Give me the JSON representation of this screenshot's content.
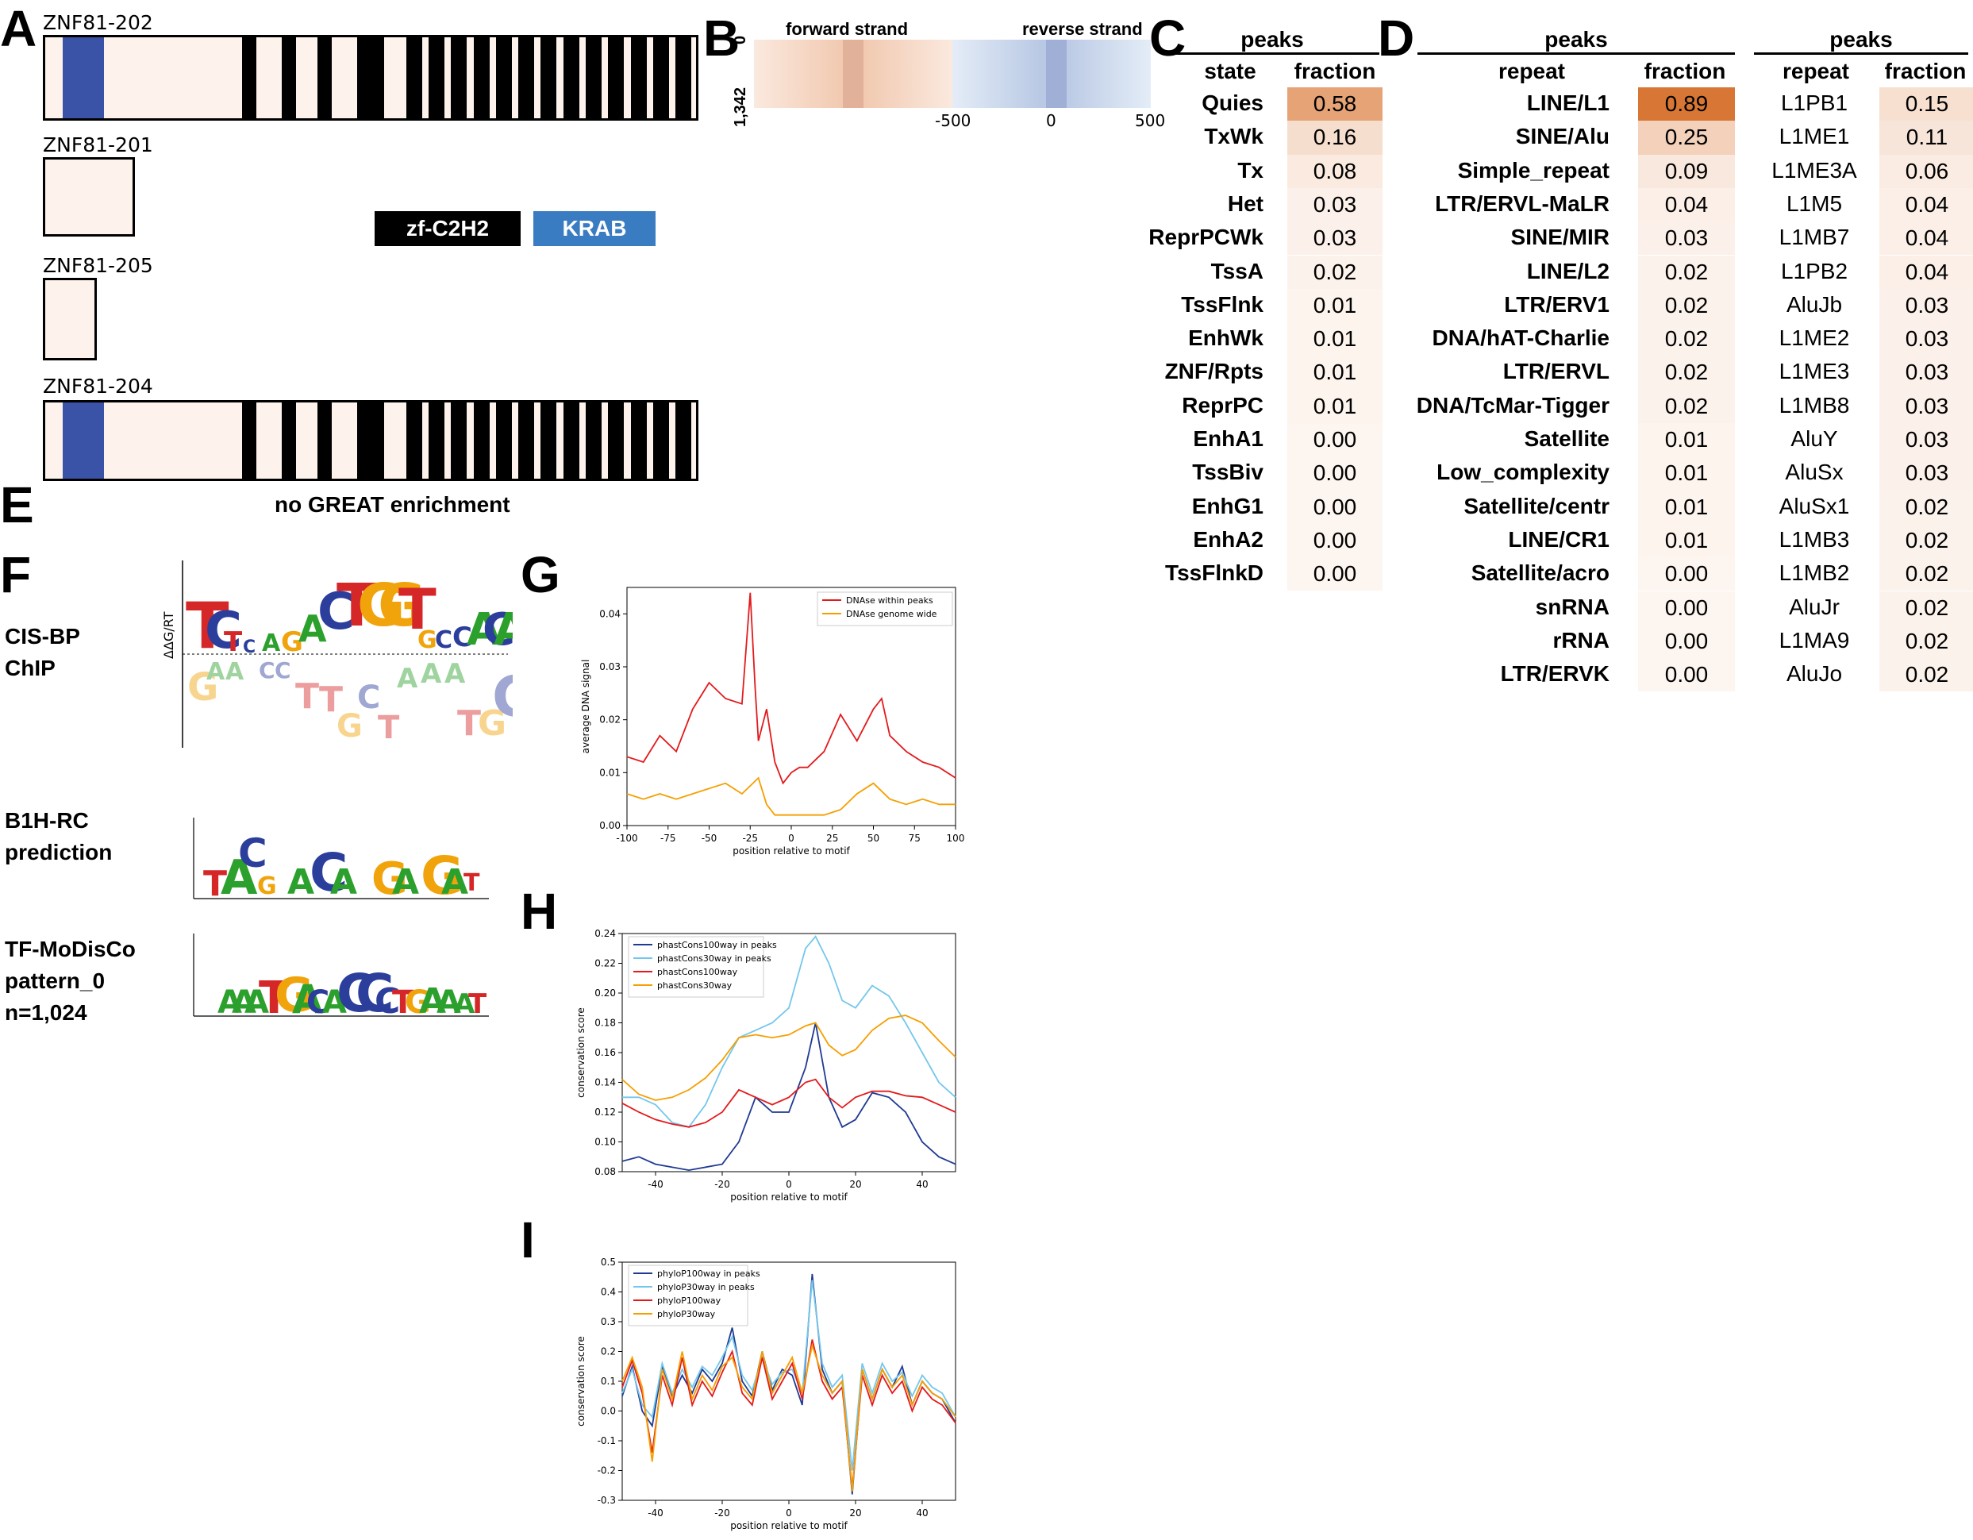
{
  "panel_labels": {
    "A": "A",
    "B": "B",
    "C": "C",
    "D": "D",
    "E": "E",
    "F": "F",
    "G": "G",
    "H": "H",
    "I": "I"
  },
  "panelA": {
    "tracks": [
      {
        "name": "ZNF81-202",
        "zf_count": 17,
        "krab": true
      },
      {
        "name": "ZNF81-201",
        "zf_count": 0,
        "krab": false
      },
      {
        "name": "ZNF81-205",
        "zf_count": 0,
        "krab": false
      },
      {
        "name": "ZNF81-204",
        "zf_count": 17,
        "krab": true
      }
    ],
    "legend": {
      "zf": "zf-C2H2",
      "krab": "KRAB",
      "zf_color": "#000000",
      "krab_color": "#3b53a6"
    }
  },
  "panelB": {
    "forward": "forward strand",
    "reverse": "reverse strand",
    "y_top": "0",
    "y_bottom": "1,342",
    "x_ticks": [
      "-500",
      "0",
      "500"
    ]
  },
  "panelC": {
    "group": "peaks",
    "col_state": "state",
    "col_fraction": "fraction",
    "rows": [
      {
        "state": "Quies",
        "fraction": "0.58",
        "v": 0.58
      },
      {
        "state": "TxWk",
        "fraction": "0.16",
        "v": 0.16
      },
      {
        "state": "Tx",
        "fraction": "0.08",
        "v": 0.08
      },
      {
        "state": "Het",
        "fraction": "0.03",
        "v": 0.03
      },
      {
        "state": "ReprPCWk",
        "fraction": "0.03",
        "v": 0.03
      },
      {
        "state": "TssA",
        "fraction": "0.02",
        "v": 0.02
      },
      {
        "state": "TssFlnk",
        "fraction": "0.01",
        "v": 0.01
      },
      {
        "state": "EnhWk",
        "fraction": "0.01",
        "v": 0.01
      },
      {
        "state": "ZNF/Rpts",
        "fraction": "0.01",
        "v": 0.01
      },
      {
        "state": "ReprPC",
        "fraction": "0.01",
        "v": 0.01
      },
      {
        "state": "EnhA1",
        "fraction": "0.00",
        "v": 0.0
      },
      {
        "state": "TssBiv",
        "fraction": "0.00",
        "v": 0.0
      },
      {
        "state": "EnhG1",
        "fraction": "0.00",
        "v": 0.0
      },
      {
        "state": "EnhA2",
        "fraction": "0.00",
        "v": 0.0
      },
      {
        "state": "TssFlnkD",
        "fraction": "0.00",
        "v": 0.0
      }
    ]
  },
  "panelD": {
    "group1": "peaks",
    "group2": "peaks",
    "col_repeat": "repeat",
    "col_fraction": "fraction",
    "families": [
      {
        "repeat": "LINE/L1",
        "fraction": "0.89",
        "v": 0.89
      },
      {
        "repeat": "SINE/Alu",
        "fraction": "0.25",
        "v": 0.25
      },
      {
        "repeat": "Simple_repeat",
        "fraction": "0.09",
        "v": 0.09
      },
      {
        "repeat": "LTR/ERVL-MaLR",
        "fraction": "0.04",
        "v": 0.04
      },
      {
        "repeat": "SINE/MIR",
        "fraction": "0.03",
        "v": 0.03
      },
      {
        "repeat": "LINE/L2",
        "fraction": "0.02",
        "v": 0.02
      },
      {
        "repeat": "LTR/ERV1",
        "fraction": "0.02",
        "v": 0.02
      },
      {
        "repeat": "DNA/hAT-Charlie",
        "fraction": "0.02",
        "v": 0.02
      },
      {
        "repeat": "LTR/ERVL",
        "fraction": "0.02",
        "v": 0.02
      },
      {
        "repeat": "DNA/TcMar-Tigger",
        "fraction": "0.02",
        "v": 0.02
      },
      {
        "repeat": "Satellite",
        "fraction": "0.01",
        "v": 0.01
      },
      {
        "repeat": "Low_complexity",
        "fraction": "0.01",
        "v": 0.01
      },
      {
        "repeat": "Satellite/centr",
        "fraction": "0.01",
        "v": 0.01
      },
      {
        "repeat": "LINE/CR1",
        "fraction": "0.01",
        "v": 0.01
      },
      {
        "repeat": "Satellite/acro",
        "fraction": "0.00",
        "v": 0.0
      },
      {
        "repeat": "snRNA",
        "fraction": "0.00",
        "v": 0.0
      },
      {
        "repeat": "rRNA",
        "fraction": "0.00",
        "v": 0.0
      },
      {
        "repeat": "LTR/ERVK",
        "fraction": "0.00",
        "v": 0.0
      }
    ],
    "subfamilies": [
      {
        "repeat": "L1PB1",
        "fraction": "0.15",
        "v": 0.15
      },
      {
        "repeat": "L1ME1",
        "fraction": "0.11",
        "v": 0.11
      },
      {
        "repeat": "L1ME3A",
        "fraction": "0.06",
        "v": 0.06
      },
      {
        "repeat": "L1M5",
        "fraction": "0.04",
        "v": 0.04
      },
      {
        "repeat": "L1MB7",
        "fraction": "0.04",
        "v": 0.04
      },
      {
        "repeat": "L1PB2",
        "fraction": "0.04",
        "v": 0.04
      },
      {
        "repeat": "AluJb",
        "fraction": "0.03",
        "v": 0.03
      },
      {
        "repeat": "L1ME2",
        "fraction": "0.03",
        "v": 0.03
      },
      {
        "repeat": "L1ME3",
        "fraction": "0.03",
        "v": 0.03
      },
      {
        "repeat": "L1MB8",
        "fraction": "0.03",
        "v": 0.03
      },
      {
        "repeat": "AluY",
        "fraction": "0.03",
        "v": 0.03
      },
      {
        "repeat": "AluSx",
        "fraction": "0.03",
        "v": 0.03
      },
      {
        "repeat": "AluSx1",
        "fraction": "0.02",
        "v": 0.02
      },
      {
        "repeat": "L1MB3",
        "fraction": "0.02",
        "v": 0.02
      },
      {
        "repeat": "L1MB2",
        "fraction": "0.02",
        "v": 0.02
      },
      {
        "repeat": "AluJr",
        "fraction": "0.02",
        "v": 0.02
      },
      {
        "repeat": "L1MA9",
        "fraction": "0.02",
        "v": 0.02
      },
      {
        "repeat": "AluJo",
        "fraction": "0.02",
        "v": 0.02
      }
    ]
  },
  "panelE": {
    "text": "no GREAT enrichment"
  },
  "panelF": {
    "cisbp_line1": "CIS-BP",
    "cisbp_line2": "ChIP",
    "b1h_line1": "B1H-RC",
    "b1h_line2": "prediction",
    "modisco_line1": "TF-MoDisCo",
    "modisco_line2": "pattern_0",
    "modisco_line3": "n=1,024",
    "ylabel": "ΔΔG/RT"
  },
  "chart_data": [
    {
      "type": "line",
      "xlabel": "position relative to motif",
      "ylabel": "average DNA signal",
      "xlim": [
        -100,
        100
      ],
      "ylim": [
        0,
        0.045
      ],
      "xticks": [
        "-100",
        "-75",
        "-50",
        "-25",
        "0",
        "25",
        "50",
        "75",
        "100"
      ],
      "yticks": [
        "0.00",
        "0.01",
        "0.02",
        "0.03",
        "0.04"
      ],
      "legend_position": "top-right",
      "series": [
        {
          "name": "DNAse within peaks",
          "color": "#e31a1c",
          "x": [
            -100,
            -90,
            -80,
            -70,
            -60,
            -50,
            -40,
            -30,
            -25,
            -22,
            -20,
            -15,
            -10,
            -5,
            0,
            5,
            10,
            20,
            30,
            40,
            50,
            55,
            60,
            70,
            80,
            90,
            100
          ],
          "y": [
            0.013,
            0.012,
            0.017,
            0.014,
            0.022,
            0.027,
            0.024,
            0.023,
            0.044,
            0.026,
            0.016,
            0.022,
            0.012,
            0.008,
            0.01,
            0.011,
            0.011,
            0.014,
            0.021,
            0.016,
            0.022,
            0.024,
            0.017,
            0.014,
            0.012,
            0.011,
            0.009
          ]
        },
        {
          "name": "DNAse genome wide",
          "color": "#f59f00",
          "x": [
            -100,
            -90,
            -80,
            -70,
            -60,
            -50,
            -40,
            -30,
            -20,
            -15,
            -10,
            -5,
            0,
            10,
            20,
            30,
            40,
            50,
            60,
            70,
            80,
            90,
            100
          ],
          "y": [
            0.006,
            0.005,
            0.006,
            0.005,
            0.006,
            0.007,
            0.008,
            0.006,
            0.009,
            0.004,
            0.002,
            0.002,
            0.002,
            0.002,
            0.002,
            0.003,
            0.006,
            0.008,
            0.005,
            0.004,
            0.005,
            0.004,
            0.004
          ]
        }
      ]
    },
    {
      "type": "line",
      "xlabel": "position relative to motif",
      "ylabel": "conservation score",
      "xlim": [
        -50,
        50
      ],
      "ylim": [
        0.08,
        0.24
      ],
      "xticks": [
        "-40",
        "-20",
        "0",
        "20",
        "40"
      ],
      "yticks": [
        "0.08",
        "0.10",
        "0.12",
        "0.14",
        "0.16",
        "0.18",
        "0.20",
        "0.22",
        "0.24"
      ],
      "legend_position": "top-left",
      "series": [
        {
          "name": "phastCons100way in peaks",
          "color": "#1f3a93",
          "x": [
            -50,
            -45,
            -40,
            -30,
            -20,
            -15,
            -10,
            -5,
            0,
            5,
            8,
            12,
            16,
            20,
            25,
            30,
            35,
            40,
            45,
            50
          ],
          "y": [
            0.087,
            0.09,
            0.085,
            0.081,
            0.085,
            0.1,
            0.13,
            0.12,
            0.12,
            0.15,
            0.18,
            0.13,
            0.11,
            0.115,
            0.133,
            0.13,
            0.12,
            0.1,
            0.09,
            0.085
          ]
        },
        {
          "name": "phastCons30way in peaks",
          "color": "#74c7ec",
          "x": [
            -50,
            -45,
            -40,
            -35,
            -30,
            -25,
            -20,
            -15,
            -10,
            -5,
            0,
            5,
            8,
            12,
            16,
            20,
            25,
            30,
            35,
            40,
            45,
            50
          ],
          "y": [
            0.13,
            0.13,
            0.125,
            0.113,
            0.11,
            0.125,
            0.15,
            0.17,
            0.175,
            0.18,
            0.19,
            0.23,
            0.238,
            0.22,
            0.195,
            0.19,
            0.205,
            0.198,
            0.18,
            0.16,
            0.14,
            0.13
          ]
        },
        {
          "name": "phastCons100way",
          "color": "#e31a1c",
          "x": [
            -50,
            -45,
            -40,
            -35,
            -30,
            -25,
            -20,
            -15,
            -10,
            -5,
            0,
            5,
            8,
            12,
            16,
            20,
            25,
            30,
            35,
            40,
            45,
            50
          ],
          "y": [
            0.126,
            0.12,
            0.115,
            0.112,
            0.11,
            0.113,
            0.12,
            0.135,
            0.13,
            0.125,
            0.13,
            0.14,
            0.142,
            0.13,
            0.123,
            0.13,
            0.134,
            0.134,
            0.131,
            0.13,
            0.125,
            0.12
          ]
        },
        {
          "name": "phastCons30way",
          "color": "#f59f00",
          "x": [
            -50,
            -45,
            -40,
            -35,
            -30,
            -25,
            -20,
            -15,
            -10,
            -5,
            0,
            5,
            8,
            12,
            16,
            20,
            25,
            30,
            35,
            40,
            45,
            50
          ],
          "y": [
            0.142,
            0.132,
            0.128,
            0.13,
            0.135,
            0.143,
            0.155,
            0.17,
            0.172,
            0.17,
            0.172,
            0.178,
            0.18,
            0.165,
            0.158,
            0.162,
            0.175,
            0.183,
            0.185,
            0.18,
            0.168,
            0.157
          ]
        }
      ]
    },
    {
      "type": "line",
      "xlabel": "position relative to motif",
      "ylabel": "conservation score",
      "xlim": [
        -50,
        50
      ],
      "ylim": [
        -0.3,
        0.5
      ],
      "xticks": [
        "-40",
        "-20",
        "0",
        "20",
        "40"
      ],
      "yticks": [
        "-0.3",
        "-0.2",
        "-0.1",
        "0.0",
        "0.1",
        "0.2",
        "0.3",
        "0.4",
        "0.5"
      ],
      "legend_position": "top-left",
      "series": [
        {
          "name": "phyloP100way in peaks",
          "color": "#1f3a93",
          "x": [
            -50,
            -47,
            -44,
            -41,
            -38,
            -35,
            -32,
            -29,
            -26,
            -23,
            -20,
            -17,
            -14,
            -11,
            -8,
            -5,
            -2,
            1,
            4,
            7,
            10,
            13,
            16,
            19,
            22,
            25,
            28,
            31,
            34,
            37,
            40,
            43,
            46,
            50
          ],
          "y": [
            0.05,
            0.15,
            0.0,
            -0.05,
            0.15,
            0.05,
            0.12,
            0.06,
            0.14,
            0.1,
            0.16,
            0.28,
            0.1,
            0.05,
            0.2,
            0.07,
            0.14,
            0.12,
            0.02,
            0.46,
            0.14,
            0.06,
            0.1,
            -0.28,
            0.14,
            0.04,
            0.14,
            0.08,
            0.15,
            0.02,
            0.1,
            0.06,
            0.04,
            -0.04
          ]
        },
        {
          "name": "phyloP30way in peaks",
          "color": "#74c7ec",
          "x": [
            -50,
            -47,
            -44,
            -41,
            -38,
            -35,
            -32,
            -29,
            -26,
            -23,
            -20,
            -17,
            -14,
            -11,
            -8,
            -5,
            -2,
            1,
            4,
            7,
            10,
            13,
            16,
            19,
            22,
            25,
            28,
            31,
            34,
            37,
            40,
            43,
            46,
            50
          ],
          "y": [
            0.06,
            0.14,
            0.02,
            -0.02,
            0.16,
            0.06,
            0.14,
            0.08,
            0.15,
            0.12,
            0.18,
            0.25,
            0.12,
            0.07,
            0.18,
            0.09,
            0.13,
            0.14,
            0.06,
            0.44,
            0.16,
            0.08,
            0.12,
            -0.2,
            0.16,
            0.06,
            0.16,
            0.1,
            0.13,
            0.05,
            0.12,
            0.08,
            0.06,
            -0.02
          ]
        },
        {
          "name": "phyloP100way",
          "color": "#e31a1c",
          "x": [
            -50,
            -47,
            -44,
            -41,
            -38,
            -35,
            -32,
            -29,
            -26,
            -23,
            -20,
            -17,
            -14,
            -11,
            -8,
            -5,
            -2,
            1,
            4,
            7,
            10,
            13,
            16,
            19,
            22,
            25,
            28,
            31,
            34,
            37,
            40,
            43,
            46,
            50
          ],
          "y": [
            0.08,
            0.17,
            0.06,
            -0.14,
            0.12,
            0.02,
            0.18,
            0.02,
            0.1,
            0.05,
            0.13,
            0.2,
            0.06,
            0.02,
            0.18,
            0.04,
            0.1,
            0.16,
            0.04,
            0.24,
            0.1,
            0.04,
            0.08,
            -0.26,
            0.12,
            0.02,
            0.12,
            0.06,
            0.1,
            0.0,
            0.08,
            0.04,
            0.02,
            -0.04
          ]
        },
        {
          "name": "phyloP30way",
          "color": "#f59f00",
          "x": [
            -50,
            -47,
            -44,
            -41,
            -38,
            -35,
            -32,
            -29,
            -26,
            -23,
            -20,
            -17,
            -14,
            -11,
            -8,
            -5,
            -2,
            1,
            4,
            7,
            10,
            13,
            16,
            19,
            22,
            25,
            28,
            31,
            34,
            37,
            40,
            43,
            46,
            50
          ],
          "y": [
            0.1,
            0.18,
            0.08,
            -0.17,
            0.14,
            0.04,
            0.2,
            0.04,
            0.12,
            0.07,
            0.15,
            0.18,
            0.08,
            0.04,
            0.2,
            0.06,
            0.12,
            0.18,
            0.06,
            0.22,
            0.12,
            0.06,
            0.1,
            -0.27,
            0.14,
            0.04,
            0.14,
            0.08,
            0.12,
            0.02,
            0.1,
            0.06,
            0.04,
            -0.02
          ]
        }
      ]
    }
  ]
}
